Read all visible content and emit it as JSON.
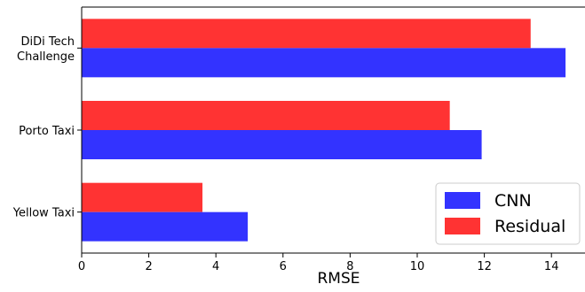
{
  "chart_data": {
    "type": "bar",
    "orientation": "horizontal",
    "categories": [
      "DiDi Tech\nChallenge",
      "Porto Taxi",
      "Yellow Taxi"
    ],
    "series": [
      {
        "name": "CNN",
        "color": "#3333ff",
        "values": [
          14.42,
          11.92,
          4.95
        ]
      },
      {
        "name": "Residual",
        "color": "#ff3333",
        "values": [
          13.38,
          10.97,
          3.6
        ]
      }
    ],
    "xlabel": "RMSE",
    "ylabel": "",
    "xlim": [
      0,
      15
    ],
    "xticks": [
      0,
      2,
      4,
      6,
      8,
      10,
      12,
      14
    ],
    "grid": false,
    "legend_position": "lower-right"
  }
}
